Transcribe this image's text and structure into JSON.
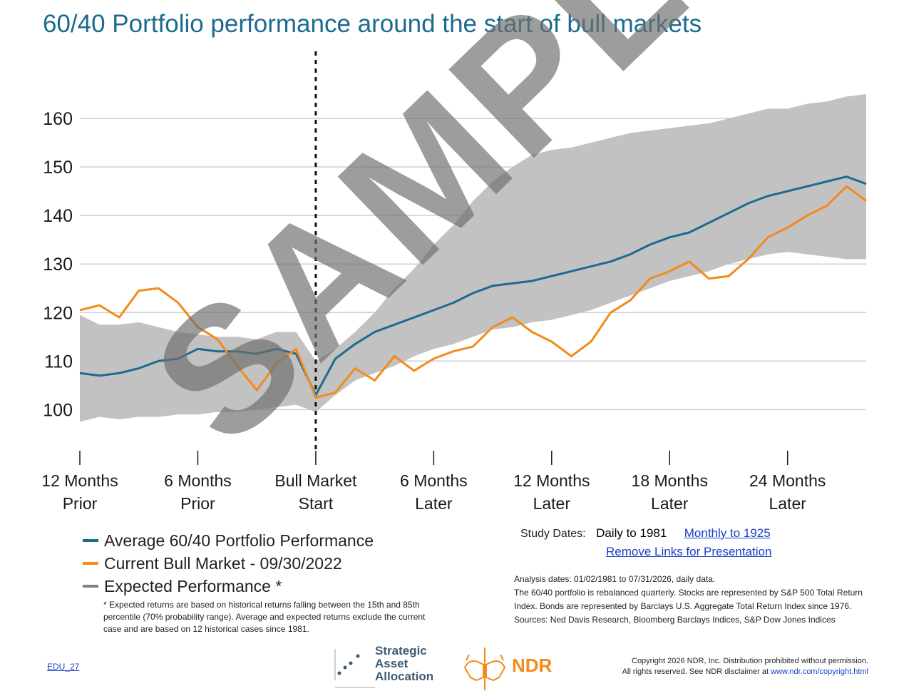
{
  "title": "60/40 Portfolio performance around the start of bull markets",
  "colors": {
    "title": "#1b6b8f",
    "average": "#1b6b8f",
    "current": "#f28a1c",
    "expected": "#c2c2c2",
    "link": "#1a3cc8"
  },
  "chart_data": {
    "type": "line",
    "title": "60/40 Portfolio performance around the start of bull markets",
    "xlabel": "",
    "ylabel": "",
    "x_unit": "months relative to bull market start",
    "xlim": [
      -12,
      28
    ],
    "ylim": [
      93,
      170
    ],
    "yticks": [
      100,
      110,
      120,
      130,
      140,
      150,
      160
    ],
    "xticks": [
      {
        "value": -12,
        "line1": "12 Months",
        "line2": "Prior"
      },
      {
        "value": -6,
        "line1": "6 Months",
        "line2": "Prior"
      },
      {
        "value": 0,
        "line1": "Bull Market",
        "line2": "Start"
      },
      {
        "value": 6,
        "line1": "6 Months",
        "line2": "Later"
      },
      {
        "value": 12,
        "line1": "12 Months",
        "line2": "Later"
      },
      {
        "value": 18,
        "line1": "18 Months",
        "line2": "Later"
      },
      {
        "value": 24,
        "line1": "24 Months",
        "line2": "Later"
      }
    ],
    "grid": true,
    "vertical_marker": 0,
    "x": [
      -12,
      -11,
      -10,
      -9,
      -8,
      -7,
      -6,
      -5,
      -4,
      -3,
      -2,
      -1,
      0,
      1,
      2,
      3,
      4,
      5,
      6,
      7,
      8,
      9,
      10,
      11,
      12,
      13,
      14,
      15,
      16,
      17,
      18,
      19,
      20,
      21,
      22,
      23,
      24,
      25,
      26,
      27,
      28
    ],
    "series": [
      {
        "name": "Average 60/40 Portfolio Performance",
        "values": [
          107.5,
          107,
          107.5,
          108.5,
          110,
          110.5,
          112.5,
          112,
          112,
          111.5,
          112.5,
          111.5,
          103,
          110.5,
          113.5,
          116,
          117.5,
          119,
          120.5,
          122,
          124,
          125.5,
          126,
          126.5,
          127.5,
          128.5,
          129.5,
          130.5,
          132,
          134,
          135.5,
          136.5,
          138.5,
          140.5,
          142.5,
          144,
          145,
          146,
          147,
          148,
          146.5
        ]
      },
      {
        "name": "Current Bull Market - 09/30/2022",
        "values": [
          120.5,
          121.5,
          119,
          124.5,
          125,
          122,
          117,
          114.5,
          109,
          104,
          109.5,
          112.5,
          102.5,
          103.5,
          108.5,
          106,
          111,
          108,
          110.5,
          112,
          113,
          117,
          119,
          116,
          114,
          111,
          114,
          120,
          122.5,
          127,
          128.5,
          130.5,
          127,
          127.5,
          131,
          135.5,
          137.5,
          140,
          142,
          146,
          143
        ]
      },
      {
        "name": "Expected Performance *",
        "upper": [
          119.5,
          117.5,
          117.5,
          118,
          117,
          116,
          115.5,
          115,
          115,
          114.5,
          116,
          116,
          110,
          112.5,
          116,
          120,
          125,
          129,
          134,
          138,
          143,
          147,
          150,
          152.5,
          153.5,
          154,
          155,
          156,
          157,
          157.5,
          158,
          158.5,
          159,
          160,
          161,
          162,
          162,
          163,
          163.5,
          164.5,
          165
        ],
        "lower": [
          97.5,
          98.5,
          98,
          98.5,
          98.5,
          99,
          99,
          99.5,
          99.5,
          100,
          100.5,
          101,
          99.5,
          103,
          106,
          107.5,
          109,
          111,
          112.5,
          113.5,
          115,
          116.5,
          117,
          118,
          118.5,
          119.5,
          120.5,
          122,
          123.5,
          125,
          126.5,
          127.5,
          128.5,
          130,
          131,
          132,
          132.5,
          132,
          131.5,
          131,
          131
        ]
      }
    ],
    "legend_position": "bottom-left"
  },
  "legend": {
    "items": [
      {
        "label": "Average 60/40 Portfolio Performance",
        "color": "#1b6b8f"
      },
      {
        "label": "Current Bull Market - 09/30/2022",
        "color": "#f28a1c"
      },
      {
        "label": "Expected Performance *",
        "color": "#808080"
      }
    ]
  },
  "footnote": "* Expected returns are based on historical returns falling between the 15th and 85th percentile (70% probability range). Average and expected returns exclude the current case and are based on 12 historical cases since 1981.",
  "study": {
    "label": "Study Dates:",
    "daily": "Daily to 1981",
    "monthly_link": "Monthly to 1925",
    "remove_link": "Remove Links for Presentation"
  },
  "notes": {
    "line1": "Analysis dates: 01/02/1981 to 07/31/2026, daily data.",
    "line2": "The 60/40 portfolio is rebalanced quarterly. Stocks are represented by S&P 500 Total Return Index. Bonds are represented by Barclays U.S. Aggregate Total Return Index since 1976.",
    "line3": "Sources: Ned Davis Research, Bloomberg Barclays Indices, S&P Dow Jones Indices"
  },
  "edu_code": "EDU_27",
  "logos": {
    "saa_line1": "Strategic",
    "saa_line2": "Asset",
    "saa_line3": "Allocation",
    "ndr": "NDR"
  },
  "copyright": {
    "line1": "Copyright 2026 NDR, Inc. Distribution prohibited without permission.",
    "line2_prefix": "All rights reserved. See NDR disclaimer at ",
    "line2_link": "www.ndr.com/copyright.html"
  },
  "watermark": "SAMPLE"
}
